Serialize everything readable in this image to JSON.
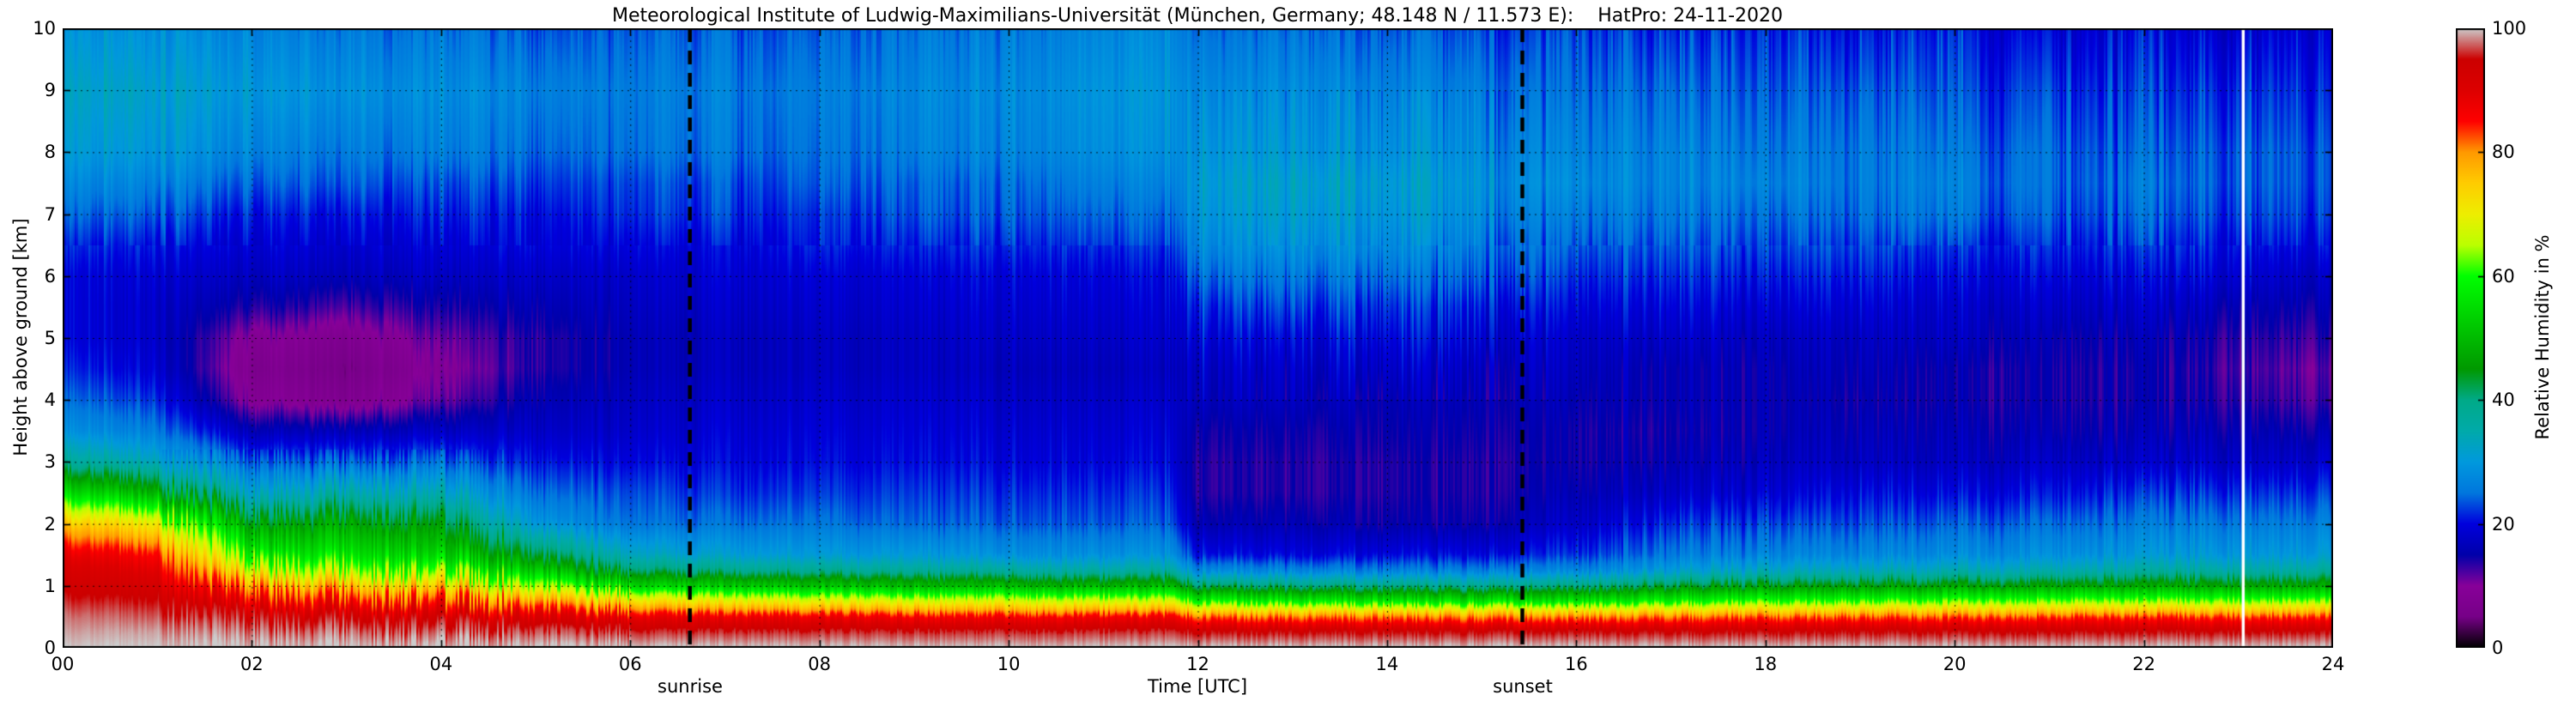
{
  "chart_data": {
    "type": "heatmap",
    "title": "Meteorological Institute of Ludwig-Maximilians-Universität (München, Germany; 48.148 N / 11.573 E):    HatPro: 24-11-2020",
    "xlabel": "Time [UTC]",
    "ylabel": "Height above ground [km]",
    "colorbar_label": "Relative Humidity in %",
    "x_range": [
      0,
      24
    ],
    "y_range": [
      0,
      10
    ],
    "value_range": [
      0,
      100
    ],
    "grid": true,
    "x_ticks": [
      0,
      2,
      4,
      6,
      8,
      10,
      12,
      14,
      16,
      18,
      20,
      22,
      24
    ],
    "x_tick_labels": [
      "00",
      "02",
      "04",
      "06",
      "08",
      "10",
      "12",
      "14",
      "16",
      "18",
      "20",
      "22",
      "24"
    ],
    "y_ticks": [
      0,
      1,
      2,
      3,
      4,
      5,
      6,
      7,
      8,
      9,
      10
    ],
    "y_tick_labels": [
      "0",
      "1",
      "2",
      "3",
      "4",
      "5",
      "6",
      "7",
      "8",
      "9",
      "10"
    ],
    "colorbar_ticks": [
      0,
      20,
      40,
      60,
      80,
      100
    ],
    "colorbar_tick_labels": [
      "0",
      "20",
      "40",
      "60",
      "80",
      "100"
    ],
    "colormap_stops": [
      {
        "pos": 0,
        "color": "#000000"
      },
      {
        "pos": 5,
        "color": "#770088"
      },
      {
        "pos": 10,
        "color": "#880099"
      },
      {
        "pos": 15,
        "color": "#0000aa"
      },
      {
        "pos": 20,
        "color": "#0000dd"
      },
      {
        "pos": 25,
        "color": "#0077dd"
      },
      {
        "pos": 30,
        "color": "#0099dd"
      },
      {
        "pos": 35,
        "color": "#00aaaa"
      },
      {
        "pos": 40,
        "color": "#00aa88"
      },
      {
        "pos": 45,
        "color": "#009900"
      },
      {
        "pos": 50,
        "color": "#00bb00"
      },
      {
        "pos": 55,
        "color": "#00dd00"
      },
      {
        "pos": 60,
        "color": "#00ff00"
      },
      {
        "pos": 65,
        "color": "#bbff00"
      },
      {
        "pos": 70,
        "color": "#eeee00"
      },
      {
        "pos": 75,
        "color": "#ffcc00"
      },
      {
        "pos": 80,
        "color": "#ff9900"
      },
      {
        "pos": 85,
        "color": "#ff0000"
      },
      {
        "pos": 90,
        "color": "#dd0000"
      },
      {
        "pos": 95,
        "color": "#cc0000"
      },
      {
        "pos": 100,
        "color": "#cccccc"
      }
    ],
    "times": [
      0,
      1,
      2,
      3,
      4,
      5,
      6,
      7,
      8,
      9,
      10,
      11,
      11.7,
      12,
      13,
      14,
      15,
      16,
      17,
      18,
      19,
      20,
      21,
      22,
      23,
      24
    ],
    "heights": [
      0,
      0.25,
      0.5,
      0.75,
      1,
      1.25,
      1.5,
      2,
      2.5,
      3,
      3.5,
      4,
      4.5,
      5,
      5.5,
      6,
      6.5,
      7,
      7.5,
      8,
      9,
      10
    ],
    "values": [
      [
        100,
        99,
        98,
        96,
        94,
        92,
        89,
        76,
        56,
        38,
        29,
        25,
        22,
        20,
        20,
        20,
        22,
        25,
        28,
        31,
        33,
        30
      ],
      [
        100,
        99,
        97,
        95,
        92,
        89,
        85,
        70,
        48,
        33,
        26,
        22,
        19,
        18,
        18,
        19,
        21,
        24,
        27,
        30,
        32,
        29
      ],
      [
        100,
        98,
        95,
        88,
        80,
        68,
        58,
        46,
        32,
        24,
        16,
        9,
        7,
        9,
        14,
        17,
        19,
        21,
        24,
        27,
        30,
        27
      ],
      [
        100,
        98,
        94,
        86,
        76,
        64,
        56,
        48,
        36,
        25,
        17,
        8,
        6,
        8,
        13,
        17,
        19,
        21,
        24,
        26,
        29,
        26
      ],
      [
        100,
        97,
        93,
        84,
        73,
        61,
        53,
        44,
        33,
        24,
        17,
        11,
        9,
        11,
        14,
        17,
        19,
        21,
        23,
        26,
        28,
        25
      ],
      [
        100,
        97,
        91,
        79,
        64,
        52,
        43,
        30,
        25,
        21,
        18,
        16,
        14,
        14,
        16,
        18,
        20,
        21,
        23,
        25,
        27,
        24
      ],
      [
        100,
        96,
        88,
        72,
        54,
        41,
        33,
        25,
        23,
        20,
        18,
        17,
        16,
        16,
        17,
        18,
        20,
        22,
        23,
        25,
        26,
        24
      ],
      [
        100,
        96,
        87,
        70,
        52,
        39,
        31,
        25,
        22,
        20,
        19,
        18,
        17,
        17,
        18,
        19,
        20,
        22,
        23,
        25,
        26,
        24
      ],
      [
        100,
        96,
        87,
        69,
        51,
        38,
        30,
        25,
        22,
        20,
        19,
        18,
        17,
        17,
        18,
        19,
        21,
        22,
        24,
        25,
        26,
        24
      ],
      [
        100,
        96,
        86,
        68,
        50,
        37,
        30,
        24,
        22,
        20,
        19,
        18,
        17,
        17,
        18,
        19,
        21,
        23,
        24,
        26,
        27,
        25
      ],
      [
        100,
        96,
        86,
        68,
        50,
        37,
        29,
        24,
        22,
        20,
        19,
        18,
        17,
        18,
        19,
        20,
        22,
        24,
        25,
        27,
        28,
        26
      ],
      [
        100,
        96,
        86,
        67,
        49,
        36,
        29,
        24,
        22,
        20,
        19,
        18,
        17,
        18,
        19,
        20,
        22,
        24,
        26,
        28,
        29,
        27
      ],
      [
        100,
        96,
        86,
        67,
        49,
        36,
        29,
        24,
        22,
        20,
        19,
        18,
        17,
        18,
        19,
        20,
        22,
        24,
        26,
        28,
        29,
        27
      ],
      [
        100,
        95,
        82,
        60,
        42,
        28,
        21,
        16,
        14,
        14,
        15,
        17,
        18,
        20,
        22,
        25,
        28,
        30,
        31,
        30,
        28,
        25
      ],
      [
        100,
        95,
        81,
        58,
        40,
        27,
        20,
        16,
        14,
        14,
        15,
        17,
        18,
        20,
        23,
        26,
        29,
        31,
        32,
        30,
        28,
        25
      ],
      [
        100,
        95,
        81,
        57,
        39,
        26,
        20,
        15,
        14,
        14,
        15,
        16,
        18,
        20,
        22,
        25,
        28,
        30,
        31,
        29,
        27,
        24
      ],
      [
        100,
        95,
        80,
        56,
        38,
        26,
        20,
        15,
        14,
        14,
        15,
        16,
        17,
        19,
        21,
        24,
        26,
        28,
        29,
        28,
        26,
        23
      ],
      [
        100,
        95,
        80,
        56,
        39,
        27,
        22,
        18,
        16,
        15,
        15,
        16,
        17,
        18,
        20,
        22,
        24,
        26,
        28,
        27,
        25,
        23
      ],
      [
        100,
        95,
        81,
        59,
        43,
        31,
        26,
        22,
        18,
        16,
        15,
        16,
        16,
        18,
        20,
        22,
        24,
        26,
        27,
        27,
        25,
        22
      ],
      [
        100,
        95,
        82,
        61,
        45,
        33,
        27,
        23,
        19,
        17,
        16,
        16,
        16,
        17,
        19,
        21,
        23,
        25,
        27,
        26,
        24,
        22
      ],
      [
        100,
        95,
        82,
        61,
        45,
        33,
        27,
        23,
        20,
        17,
        16,
        15,
        16,
        17,
        19,
        21,
        23,
        25,
        26,
        26,
        24,
        21
      ],
      [
        100,
        95,
        82,
        62,
        46,
        34,
        28,
        24,
        20,
        17,
        16,
        15,
        15,
        17,
        18,
        20,
        22,
        25,
        26,
        25,
        23,
        21
      ],
      [
        100,
        95,
        83,
        63,
        47,
        35,
        29,
        25,
        21,
        18,
        16,
        15,
        15,
        16,
        18,
        20,
        22,
        24,
        25,
        25,
        23,
        20
      ],
      [
        100,
        95,
        83,
        63,
        47,
        36,
        30,
        26,
        22,
        18,
        16,
        15,
        15,
        16,
        18,
        20,
        22,
        24,
        25,
        24,
        22,
        20
      ],
      [
        100,
        95,
        83,
        63,
        47,
        36,
        30,
        26,
        22,
        18,
        16,
        14,
        13,
        14,
        16,
        19,
        21,
        23,
        24,
        24,
        22,
        19
      ],
      [
        100,
        95,
        83,
        63,
        47,
        36,
        30,
        26,
        22,
        18,
        15,
        12,
        11,
        13,
        15,
        17,
        20,
        22,
        23,
        23,
        21,
        19
      ]
    ],
    "annotations": [
      {
        "type": "vline",
        "x": 6.63,
        "style": "dashed",
        "color": "#000000",
        "label": "sunrise"
      },
      {
        "type": "vline",
        "x": 15.43,
        "style": "dashed",
        "color": "#000000",
        "label": "sunset"
      },
      {
        "type": "vline",
        "x": 23.05,
        "style": "solid",
        "color": "#ffffff",
        "label": ""
      }
    ]
  }
}
